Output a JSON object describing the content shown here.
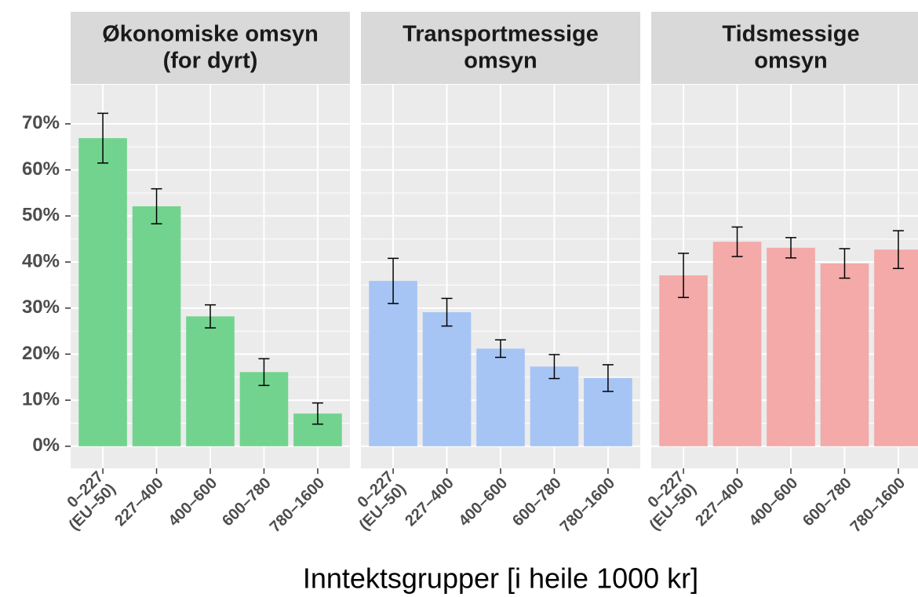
{
  "chart_data": {
    "type": "bar",
    "x_label": "Inntektsgrupper [i heile 1000 kr]",
    "categories": [
      "0–227\n(EU–50)",
      "227–400",
      "400–600",
      "600–780",
      "780–1600"
    ],
    "ylim": [
      -4.8,
      78.5
    ],
    "yticks": [
      {
        "value": 0,
        "label": "0%"
      },
      {
        "value": 10,
        "label": "10%"
      },
      {
        "value": 20,
        "label": "20%"
      },
      {
        "value": 30,
        "label": "30%"
      },
      {
        "value": 40,
        "label": "40%"
      },
      {
        "value": 50,
        "label": "50%"
      },
      {
        "value": 60,
        "label": "60%"
      },
      {
        "value": 70,
        "label": "70%"
      }
    ],
    "grid": true,
    "facets": [
      {
        "title": "Økonomiske omsyn\n(for dyrt)",
        "color": "#72d38e",
        "values": [
          66.9,
          52.1,
          28.2,
          16.1,
          7.1
        ],
        "errors": [
          5.4,
          3.8,
          2.5,
          2.9,
          2.3
        ]
      },
      {
        "title": "Transportmessige\nomsyn",
        "color": "#a6c5f5",
        "values": [
          35.9,
          29.1,
          21.2,
          17.3,
          14.8
        ],
        "errors": [
          4.9,
          3.0,
          1.9,
          2.6,
          2.9
        ]
      },
      {
        "title": "Tidsmessige\nomsyn",
        "color": "#f3aaa8",
        "values": [
          37.1,
          44.4,
          43.1,
          39.7,
          42.7
        ],
        "errors": [
          4.8,
          3.2,
          2.2,
          3.2,
          4.1
        ]
      }
    ]
  }
}
